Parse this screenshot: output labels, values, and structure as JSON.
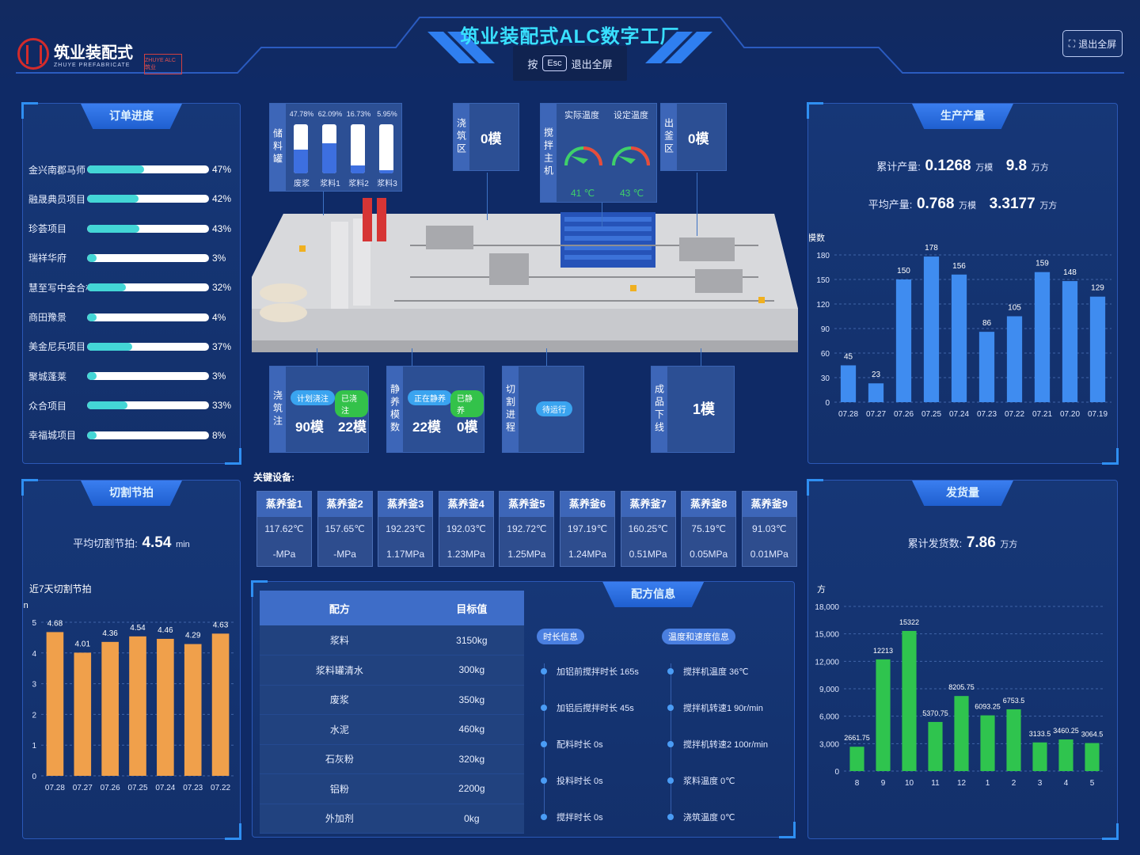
{
  "header": {
    "title": "筑业装配式ALC数字工厂",
    "esc_hint_pre": "按",
    "esc_key": "Esc",
    "esc_hint_post": "退出全屏",
    "exit_button": "退出全屏",
    "logo_name": "筑业装配式",
    "logo_sub": "ZHUYE PREFABRICATE",
    "logo_badge": "ZHUYE ALC 筑业"
  },
  "orders": {
    "title": "订单进度",
    "items": [
      {
        "name": "金兴南郡马师",
        "pct": 47,
        "label": "47%"
      },
      {
        "name": "融晟典员项目",
        "pct": 42,
        "label": "42%"
      },
      {
        "name": "珍荟项目",
        "pct": 43,
        "label": "43%"
      },
      {
        "name": "瑞祥华府",
        "pct": 3,
        "label": "3%"
      },
      {
        "name": "慧至写中金合楼",
        "pct": 32,
        "label": "32%"
      },
      {
        "name": "商田豫景",
        "pct": 4,
        "label": "4%"
      },
      {
        "name": "美金尼兵项目",
        "pct": 37,
        "label": "37%"
      },
      {
        "name": "聚城蓬莱",
        "pct": 3,
        "label": "3%"
      },
      {
        "name": "众合项目",
        "pct": 33,
        "label": "33%"
      },
      {
        "name": "幸福城项目",
        "pct": 8,
        "label": "8%"
      }
    ]
  },
  "cutting": {
    "title": "切割节拍",
    "avg_label": "平均切割节拍:",
    "avg_value": "4.54",
    "avg_unit": "min",
    "chart_title": "近7天切割节拍",
    "chart_data": {
      "type": "bar",
      "ylabel": "min",
      "ylim": [
        0,
        5
      ],
      "yticks": [
        "0",
        "1",
        "2",
        "3",
        "4",
        "5"
      ],
      "categories": [
        "07.28",
        "07.27",
        "07.26",
        "07.25",
        "07.24",
        "07.23",
        "07.22"
      ],
      "values": [
        4.68,
        4.01,
        4.36,
        4.54,
        4.46,
        4.29,
        4.63
      ],
      "color": "#f0a04b"
    }
  },
  "production": {
    "title": "生产产量",
    "total_label": "累计产量:",
    "total_value": "0.1268",
    "total_unit": "万模",
    "total_value2": "9.8",
    "total_unit2": "万方",
    "avg_label": "平均产量:",
    "avg_value": "0.768",
    "avg_unit": "万模",
    "avg_value2": "3.3177",
    "avg_unit2": "万方",
    "chart_data": {
      "type": "bar",
      "ylabel": "模数",
      "ylim": [
        0,
        180
      ],
      "yticks": [
        "0",
        "30",
        "60",
        "90",
        "120",
        "150",
        "180"
      ],
      "categories": [
        "07.28",
        "07.27",
        "07.26",
        "07.25",
        "07.24",
        "07.23",
        "07.22",
        "07.21",
        "07.20",
        "07.19"
      ],
      "values": [
        45,
        23,
        150,
        178,
        156,
        86,
        105,
        159,
        148,
        129
      ],
      "color": "#3f8cf0"
    }
  },
  "shipping": {
    "title": "发货量",
    "total_label": "累计发货数:",
    "total_value": "7.86",
    "total_unit": "万方",
    "chart_data": {
      "type": "bar",
      "ylabel": "方",
      "ylim": [
        0,
        18000
      ],
      "yticks": [
        "0",
        "3,000",
        "6,000",
        "9,000",
        "12,000",
        "15,000",
        "18,000"
      ],
      "categories": [
        "8",
        "9",
        "10",
        "11",
        "12",
        "1",
        "2",
        "3",
        "4",
        "5"
      ],
      "values": [
        2661.75,
        12213,
        15322,
        5370.75,
        8205.75,
        6093.25,
        6753.5,
        3133.5,
        3460.25,
        3064.5
      ],
      "labels": [
        "2661.75",
        "12213",
        "15322",
        "5370.75",
        "8205.75",
        "6093.25",
        "6753.5",
        "3133.5",
        "3460.25",
        "3064.5"
      ],
      "color": "#2fc44e"
    }
  },
  "storage": {
    "label": "储料罐",
    "tanks": [
      {
        "pct_label": "47.78%",
        "name": "废浆",
        "fill": 0.4778
      },
      {
        "pct_label": "62.09%",
        "name": "浆料1",
        "fill": 0.6209
      },
      {
        "pct_label": "16.73%",
        "name": "浆料2",
        "fill": 0.1673
      },
      {
        "pct_label": "5.95%",
        "name": "浆料3",
        "fill": 0.0595
      }
    ]
  },
  "mixing": {
    "label": "浇筑区",
    "value": "0模"
  },
  "mixer": {
    "label": "搅拌主机",
    "actual_label": "实际温度",
    "set_label": "设定温度",
    "actual_value": "41 ℃",
    "set_value": "43 ℃"
  },
  "outlet": {
    "label": "出釜区",
    "value": "0模"
  },
  "pouring": {
    "label": "浇筑注",
    "plan_label": "计划浇注",
    "done_label": "已浇注",
    "plan_value": "90模",
    "done_value": "22模"
  },
  "curing": {
    "label": "静养模数",
    "in_label": "正在静养",
    "done_label": "已静养",
    "in_value": "22模",
    "done_value": "0模"
  },
  "cut_process": {
    "label": "切割进程",
    "status": "待运行"
  },
  "offline": {
    "label": "成品下线",
    "value": "1模"
  },
  "devices": {
    "title": "关键设备:",
    "items": [
      {
        "name": "蒸养釜1",
        "temp": "117.62℃",
        "press": "-MPa"
      },
      {
        "name": "蒸养釜2",
        "temp": "157.65℃",
        "press": "-MPa"
      },
      {
        "name": "蒸养釜3",
        "temp": "192.23℃",
        "press": "1.17MPa"
      },
      {
        "name": "蒸养釜4",
        "temp": "192.03℃",
        "press": "1.23MPa"
      },
      {
        "name": "蒸养釜5",
        "temp": "192.72℃",
        "press": "1.25MPa"
      },
      {
        "name": "蒸养釜6",
        "temp": "197.19℃",
        "press": "1.24MPa"
      },
      {
        "name": "蒸养釜7",
        "temp": "160.25℃",
        "press": "0.51MPa"
      },
      {
        "name": "蒸养釜8",
        "temp": "75.19℃",
        "press": "0.05MPa"
      },
      {
        "name": "蒸养釜9",
        "temp": "91.03℃",
        "press": "0.01MPa"
      }
    ]
  },
  "recipe": {
    "title": "配方信息",
    "col1": "配方",
    "col2": "目标值",
    "rows": [
      {
        "name": "浆料",
        "value": "3150kg"
      },
      {
        "name": "浆料罐清水",
        "value": "300kg"
      },
      {
        "name": "废浆",
        "value": "350kg"
      },
      {
        "name": "水泥",
        "value": "460kg"
      },
      {
        "name": "石灰粉",
        "value": "320kg"
      },
      {
        "name": "铝粉",
        "value": "2200g"
      },
      {
        "name": "外加剂",
        "value": "0kg"
      }
    ],
    "time_tag": "时长信息",
    "temp_tag": "温度和速度信息",
    "time_items": [
      "加铝前搅拌时长 165s",
      "加铝后搅拌时长 45s",
      "配料时长 0s",
      "投料时长 0s",
      "搅拌时长 0s"
    ],
    "temp_items": [
      "搅拌机温度 36℃",
      "搅拌机转速1 90r/min",
      "搅拌机转速2 100r/min",
      "浆料温度 0℃",
      "浇筑温度 0℃"
    ]
  }
}
